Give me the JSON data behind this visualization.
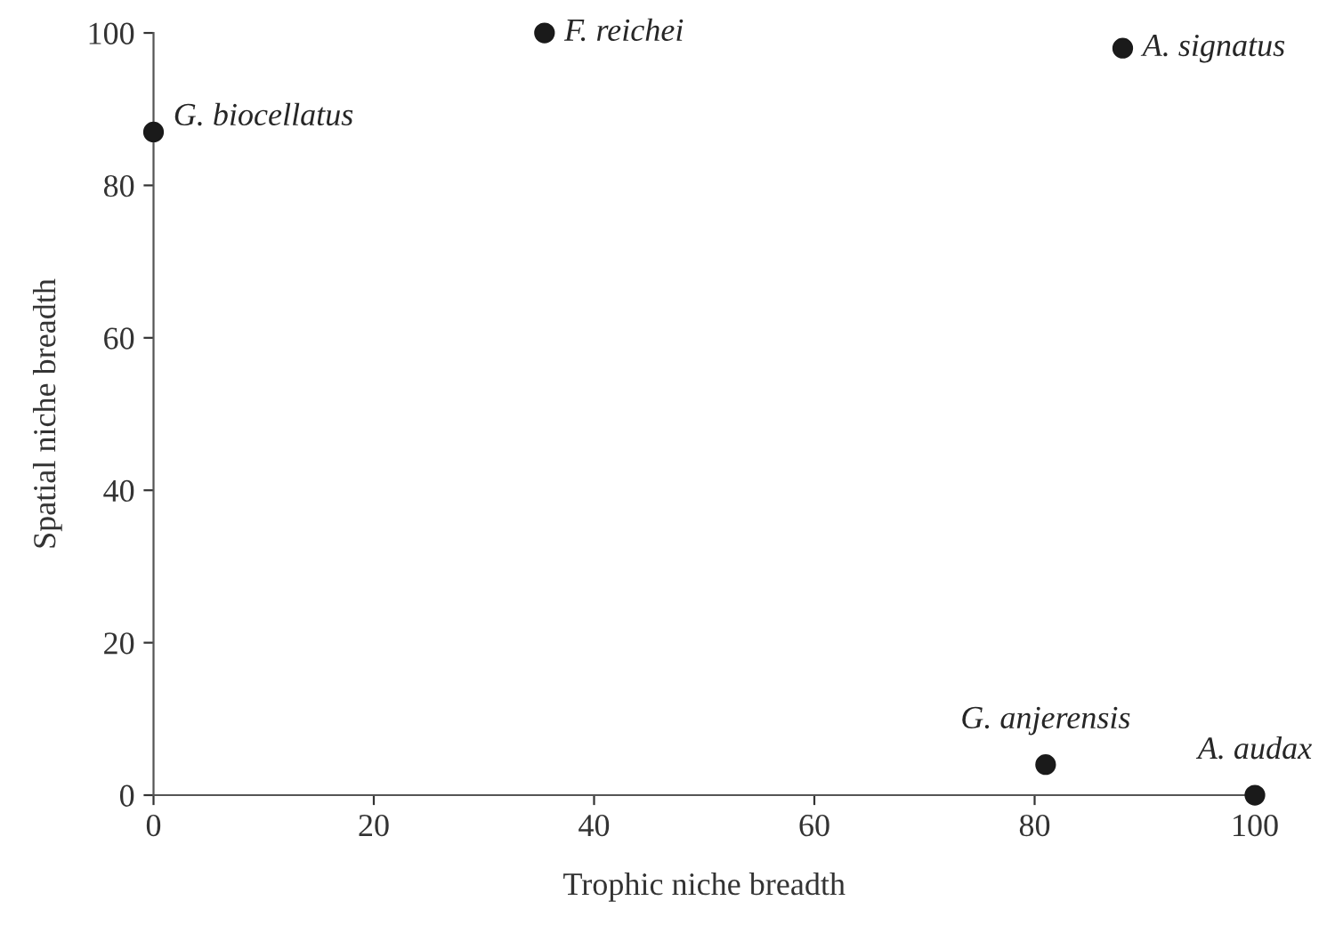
{
  "chart_data": {
    "type": "scatter",
    "xlabel": "Trophic niche breadth",
    "ylabel": "Spatial niche breadth",
    "x": [
      0,
      35.5,
      88,
      81,
      100
    ],
    "series": [
      {
        "color": "#1a1a1a",
        "values": [
          87,
          100,
          98,
          4,
          0
        ]
      }
    ],
    "annotations": [
      {
        "text": "G. biocellatus",
        "x": 0,
        "y": 87
      },
      {
        "text": "F. reichei",
        "x": 35.5,
        "y": 100
      },
      {
        "text": "A. signatus",
        "x": 88,
        "y": 98
      },
      {
        "text": "G. anjerensis",
        "x": 81,
        "y": 4
      },
      {
        "text": "A. audax",
        "x": 100,
        "y": 0
      }
    ],
    "xlim": [
      0,
      100
    ],
    "ylim": [
      0,
      100
    ],
    "xticks": [
      0,
      20,
      40,
      60,
      80,
      100
    ],
    "yticks": [
      0,
      20,
      40,
      60,
      80,
      100
    ],
    "grid": false,
    "legend": false,
    "marker": "circle"
  }
}
